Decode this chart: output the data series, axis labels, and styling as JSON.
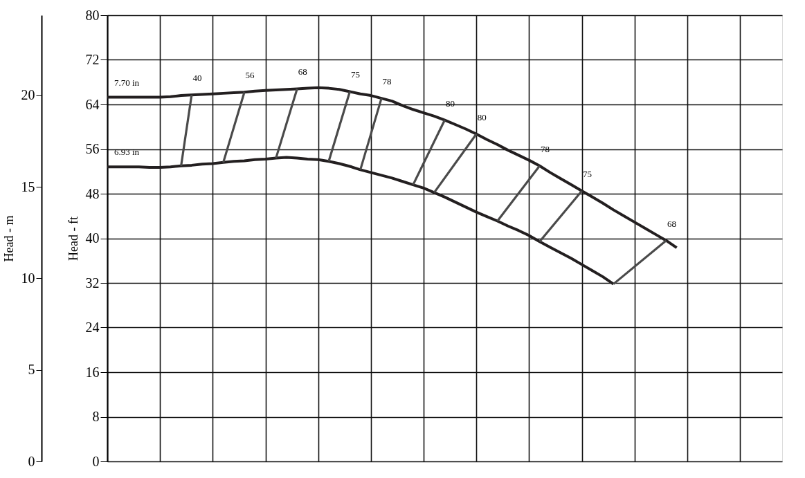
{
  "chart_data": {
    "type": "line",
    "ylabel": "Head - ft",
    "y2label": "Head - m",
    "categories": [
      null,
      null,
      null,
      null,
      null,
      null,
      null,
      null,
      null,
      null,
      null,
      null,
      null,
      null,
      null,
      null,
      null,
      null,
      null,
      null,
      null,
      null,
      null,
      null,
      null,
      null,
      null,
      null,
      null,
      null,
      null,
      null,
      null,
      null,
      null,
      null,
      null,
      null,
      null,
      null,
      null,
      null,
      null,
      null,
      null,
      null,
      null,
      null,
      null,
      null,
      null,
      null,
      null,
      null,
      null,
      null,
      null,
      null,
      null,
      null,
      null,
      null,
      null,
      null,
      null
    ],
    "ylim": [
      0,
      80
    ],
    "yticks": [
      0,
      8,
      16,
      24,
      32,
      40,
      48,
      56,
      64,
      72,
      80
    ],
    "y2lim": [
      0,
      24.384
    ],
    "y2ticks": [
      0,
      5,
      10,
      15,
      20
    ],
    "grid": true,
    "tick_labels": "y",
    "line_style": "solid",
    "marker": "none",
    "series": [
      {
        "name": "7.70 in",
        "color": "#231f20",
        "values": [
          65.3,
          65.3,
          65.3,
          65.3,
          65.3,
          65.3,
          65.4,
          65.6,
          65.7,
          65.8,
          65.9,
          66.0,
          66.1,
          66.2,
          66.4,
          66.5,
          66.6,
          66.7,
          66.8,
          66.9,
          67.0,
          66.9,
          66.7,
          66.3,
          65.9,
          65.6,
          65.1,
          64.6,
          63.8,
          63.1,
          62.5,
          61.9,
          61.2,
          60.4,
          59.6,
          58.7,
          57.7,
          56.8,
          55.8,
          54.9,
          54.0,
          53.0,
          51.8,
          50.7,
          49.6,
          48.5,
          47.4,
          46.3,
          45.1,
          44.0,
          42.9,
          41.8,
          40.7,
          39.6,
          38.3,
          null,
          null,
          null,
          null,
          null,
          null,
          null,
          null,
          null,
          null
        ]
      },
      {
        "name": "6.93 in",
        "color": "#231f20",
        "values": [
          52.8,
          52.8,
          52.8,
          52.8,
          52.7,
          52.7,
          52.8,
          53.0,
          53.1,
          53.3,
          53.4,
          53.6,
          53.8,
          53.9,
          54.1,
          54.2,
          54.4,
          54.5,
          54.4,
          54.2,
          54.1,
          53.8,
          53.4,
          52.9,
          52.3,
          51.8,
          51.3,
          50.8,
          50.2,
          49.6,
          49.0,
          48.2,
          47.4,
          46.5,
          45.6,
          44.7,
          43.9,
          43.1,
          42.2,
          41.4,
          40.5,
          39.4,
          38.4,
          37.4,
          36.4,
          35.3,
          34.2,
          33.1,
          31.8,
          null,
          null,
          null,
          null,
          null,
          null,
          null,
          null,
          null,
          null,
          null,
          null,
          null,
          null,
          null,
          null
        ]
      },
      {
        "name": "40",
        "color": "#4a4a4a",
        "values": [
          null,
          null,
          null,
          null,
          null,
          null,
          null,
          53.0,
          65.7,
          null,
          null,
          null,
          null,
          null,
          null,
          null,
          null,
          null,
          null,
          null,
          null,
          null,
          null,
          null,
          null,
          null,
          null,
          null,
          null,
          null,
          null,
          null,
          null,
          null,
          null,
          null,
          null,
          null,
          null,
          null,
          null,
          null,
          null,
          null,
          null,
          null,
          null,
          null,
          null,
          null,
          null,
          null,
          null,
          null,
          null,
          null,
          null,
          null,
          null,
          null,
          null,
          null,
          null,
          null,
          null
        ]
      },
      {
        "name": "56",
        "color": "#4a4a4a",
        "values": [
          null,
          null,
          null,
          null,
          null,
          null,
          null,
          null,
          null,
          null,
          null,
          53.6,
          null,
          66.2,
          null,
          null,
          null,
          null,
          null,
          null,
          null,
          null,
          null,
          null,
          null,
          null,
          null,
          null,
          null,
          null,
          null,
          null,
          null,
          null,
          null,
          null,
          null,
          null,
          null,
          null,
          null,
          null,
          null,
          null,
          null,
          null,
          null,
          null,
          null,
          null,
          null,
          null,
          null,
          null,
          null,
          null,
          null,
          null,
          null,
          null,
          null,
          null,
          null,
          null,
          null
        ]
      },
      {
        "name": "68",
        "color": "#4a4a4a",
        "values": [
          null,
          null,
          null,
          null,
          null,
          null,
          null,
          null,
          null,
          null,
          null,
          null,
          null,
          null,
          null,
          null,
          54.4,
          null,
          66.8,
          null,
          null,
          null,
          null,
          null,
          null,
          null,
          null,
          null,
          null,
          null,
          null,
          null,
          null,
          null,
          null,
          null,
          null,
          null,
          null,
          null,
          null,
          null,
          null,
          null,
          null,
          null,
          null,
          null,
          null,
          null,
          null,
          null,
          null,
          null,
          null,
          null,
          null,
          null,
          null,
          null,
          null,
          null,
          null,
          null,
          null
        ]
      },
      {
        "name": "75",
        "color": "#4a4a4a",
        "values": [
          null,
          null,
          null,
          null,
          null,
          null,
          null,
          null,
          null,
          null,
          null,
          null,
          null,
          null,
          null,
          null,
          null,
          null,
          null,
          null,
          null,
          53.8,
          null,
          66.3,
          null,
          null,
          null,
          null,
          null,
          null,
          null,
          null,
          null,
          null,
          null,
          null,
          null,
          null,
          null,
          null,
          null,
          null,
          null,
          null,
          null,
          null,
          null,
          null,
          null,
          null,
          null,
          null,
          null,
          null,
          null,
          null,
          null,
          null,
          null,
          null,
          null,
          null,
          null,
          null,
          null
        ]
      },
      {
        "name": "78",
        "color": "#4a4a4a",
        "values": [
          null,
          null,
          null,
          null,
          null,
          null,
          null,
          null,
          null,
          null,
          null,
          null,
          null,
          null,
          null,
          null,
          null,
          null,
          null,
          null,
          null,
          null,
          null,
          null,
          52.3,
          null,
          65.1,
          null,
          null,
          null,
          null,
          null,
          null,
          null,
          null,
          null,
          null,
          null,
          null,
          null,
          null,
          null,
          null,
          null,
          null,
          null,
          null,
          null,
          null,
          null,
          null,
          null,
          null,
          null,
          null,
          null,
          null,
          null,
          null,
          null,
          null,
          null,
          null,
          null,
          null
        ]
      },
      {
        "name": "80",
        "color": "#4a4a4a",
        "values": [
          null,
          null,
          null,
          null,
          null,
          null,
          null,
          null,
          null,
          null,
          null,
          null,
          null,
          null,
          null,
          null,
          null,
          null,
          null,
          null,
          null,
          null,
          null,
          null,
          null,
          null,
          null,
          null,
          null,
          49.6,
          null,
          null,
          61.2,
          null,
          null,
          null,
          null,
          null,
          null,
          null,
          null,
          null,
          null,
          null,
          null,
          null,
          null,
          null,
          null,
          null,
          null,
          null,
          null,
          null,
          null,
          null,
          null,
          null,
          null,
          null,
          null,
          null,
          null,
          null,
          null
        ]
      },
      {
        "name": "80",
        "color": "#4a4a4a",
        "values": [
          null,
          null,
          null,
          null,
          null,
          null,
          null,
          null,
          null,
          null,
          null,
          null,
          null,
          null,
          null,
          null,
          null,
          null,
          null,
          null,
          null,
          null,
          null,
          null,
          null,
          null,
          null,
          null,
          null,
          null,
          null,
          48.2,
          null,
          null,
          null,
          58.7,
          null,
          null,
          null,
          null,
          null,
          null,
          null,
          null,
          null,
          null,
          null,
          null,
          null,
          null,
          null,
          null,
          null,
          null,
          null,
          null,
          null,
          null,
          null,
          null,
          null,
          null,
          null,
          null,
          null
        ]
      },
      {
        "name": "78",
        "color": "#4a4a4a",
        "values": [
          null,
          null,
          null,
          null,
          null,
          null,
          null,
          null,
          null,
          null,
          null,
          null,
          null,
          null,
          null,
          null,
          null,
          null,
          null,
          null,
          null,
          null,
          null,
          null,
          null,
          null,
          null,
          null,
          null,
          null,
          null,
          null,
          null,
          null,
          null,
          null,
          null,
          43.1,
          null,
          null,
          null,
          53.0,
          null,
          null,
          null,
          null,
          null,
          null,
          null,
          null,
          null,
          null,
          null,
          null,
          null,
          null,
          null,
          null,
          null,
          null,
          null,
          null,
          null,
          null,
          null
        ]
      },
      {
        "name": "75",
        "color": "#4a4a4a",
        "values": [
          null,
          null,
          null,
          null,
          null,
          null,
          null,
          null,
          null,
          null,
          null,
          null,
          null,
          null,
          null,
          null,
          null,
          null,
          null,
          null,
          null,
          null,
          null,
          null,
          null,
          null,
          null,
          null,
          null,
          null,
          null,
          null,
          null,
          null,
          null,
          null,
          null,
          null,
          null,
          null,
          null,
          39.4,
          null,
          null,
          null,
          48.5,
          null,
          null,
          null,
          null,
          null,
          null,
          null,
          null,
          null,
          null,
          null,
          null,
          null,
          null,
          null,
          null,
          null,
          null,
          null
        ]
      },
      {
        "name": "68",
        "color": "#4a4a4a",
        "values": [
          null,
          null,
          null,
          null,
          null,
          null,
          null,
          null,
          null,
          null,
          null,
          null,
          null,
          null,
          null,
          null,
          null,
          null,
          null,
          null,
          null,
          null,
          null,
          null,
          null,
          null,
          null,
          null,
          null,
          null,
          null,
          null,
          null,
          null,
          null,
          null,
          null,
          null,
          null,
          null,
          null,
          null,
          null,
          null,
          null,
          null,
          null,
          null,
          31.8,
          null,
          null,
          null,
          null,
          39.6,
          null,
          null,
          null,
          null,
          null,
          null,
          null,
          null,
          null,
          null,
          null
        ]
      }
    ]
  }
}
